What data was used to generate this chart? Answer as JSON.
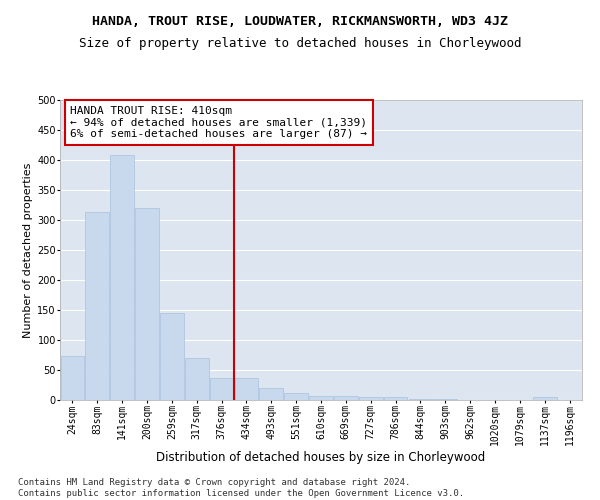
{
  "title": "HANDA, TROUT RISE, LOUDWATER, RICKMANSWORTH, WD3 4JZ",
  "subtitle": "Size of property relative to detached houses in Chorleywood",
  "xlabel": "Distribution of detached houses by size in Chorleywood",
  "ylabel": "Number of detached properties",
  "categories": [
    "24sqm",
    "83sqm",
    "141sqm",
    "200sqm",
    "259sqm",
    "317sqm",
    "376sqm",
    "434sqm",
    "493sqm",
    "551sqm",
    "610sqm",
    "669sqm",
    "727sqm",
    "786sqm",
    "844sqm",
    "903sqm",
    "962sqm",
    "1020sqm",
    "1079sqm",
    "1137sqm",
    "1196sqm"
  ],
  "values": [
    73,
    313,
    408,
    320,
    145,
    70,
    36,
    36,
    20,
    12,
    6,
    6,
    5,
    5,
    2,
    2,
    0,
    0,
    0,
    5,
    0
  ],
  "bar_color": "#c8d9ee",
  "bar_edgecolor": "#a8c0de",
  "annotation_line1": "HANDA TROUT RISE: 410sqm",
  "annotation_line2": "← 94% of detached houses are smaller (1,339)",
  "annotation_line3": "6% of semi-detached houses are larger (87) →",
  "annotation_box_facecolor": "#ffffff",
  "annotation_box_edgecolor": "#cc0000",
  "vline_color": "#cc0000",
  "vline_x": 6.5,
  "ylim": [
    0,
    500
  ],
  "yticks": [
    0,
    50,
    100,
    150,
    200,
    250,
    300,
    350,
    400,
    450,
    500
  ],
  "background_color": "#dde6f0",
  "grid_color": "#ffffff",
  "footer_text": "Contains HM Land Registry data © Crown copyright and database right 2024.\nContains public sector information licensed under the Open Government Licence v3.0.",
  "title_fontsize": 9.5,
  "subtitle_fontsize": 9,
  "xlabel_fontsize": 8.5,
  "ylabel_fontsize": 8,
  "tick_fontsize": 7,
  "annotation_fontsize": 8,
  "footer_fontsize": 6.5
}
